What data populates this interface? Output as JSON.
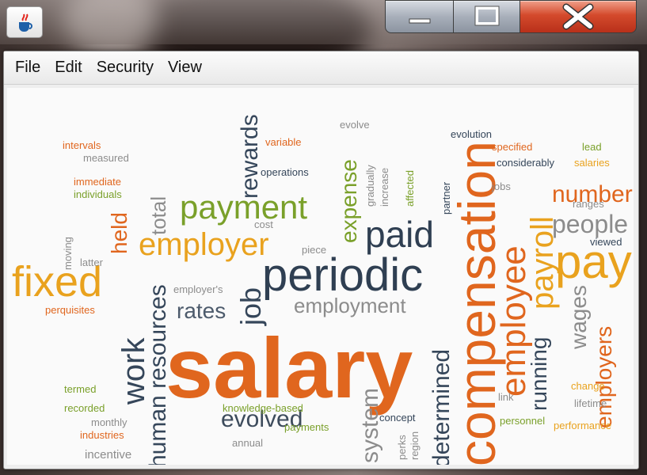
{
  "window": {
    "app_icon": "java-cup-icon",
    "controls": [
      {
        "name": "minimize",
        "icon": "minimize-icon"
      },
      {
        "name": "maximize",
        "icon": "maximize-icon"
      },
      {
        "name": "close",
        "icon": "close-icon"
      }
    ]
  },
  "menubar": {
    "items": [
      "File",
      "Edit",
      "Security",
      "View"
    ]
  },
  "wordcloud": {
    "words": {
      "salary": "salary",
      "periodic": "periodic",
      "payment": "payment",
      "employer": "employer",
      "fixed": "fixed",
      "paid": "paid",
      "compensation": "compensation",
      "employee": "employee",
      "payroll": "payroll",
      "pay": "pay",
      "number": "number",
      "people": "people",
      "work": "work",
      "human_resources": "human resources",
      "job": "job",
      "rates": "rates",
      "employment": "employment",
      "evolved": "evolved",
      "system": "system",
      "determined": "determined",
      "running": "running",
      "wages": "wages",
      "employers": "employers",
      "rewards": "rewards",
      "expense": "expense",
      "held": "held",
      "total": "total",
      "measured": "measured",
      "intervals": "intervals",
      "immediate": "immediate",
      "individuals": "individuals",
      "variable": "variable",
      "operations": "operations",
      "evolve": "evolve",
      "evolution": "evolution",
      "specified": "specified",
      "considerably": "considerably",
      "lead": "lead",
      "salaries": "salaries",
      "jobs": "jobs",
      "ranges": "ranges",
      "viewed": "viewed",
      "cost": "cost",
      "piece": "piece",
      "perquisites": "perquisites",
      "termed": "termed",
      "recorded": "recorded",
      "monthly": "monthly",
      "industries": "industries",
      "incentive": "incentive",
      "knowledge_based": "knowledge-based",
      "annual": "annual",
      "payments": "payments",
      "concept": "concept",
      "personnel": "personnel",
      "change": "change",
      "lifetime": "lifetime",
      "performance": "performance",
      "employer_s": "employer's",
      "partner": "partner",
      "affected": "affected",
      "gradually": "gradually",
      "increase": "increase",
      "perks": "perks",
      "region": "region",
      "link": "link",
      "latter": "latter",
      "moving": "moving"
    }
  },
  "colors": {
    "orange": "#e0661e",
    "green": "#7aa02a",
    "navy": "#35465a",
    "gold": "#e9a21e",
    "gray": "#8c8c8c",
    "close_red": "#d44a2c"
  }
}
